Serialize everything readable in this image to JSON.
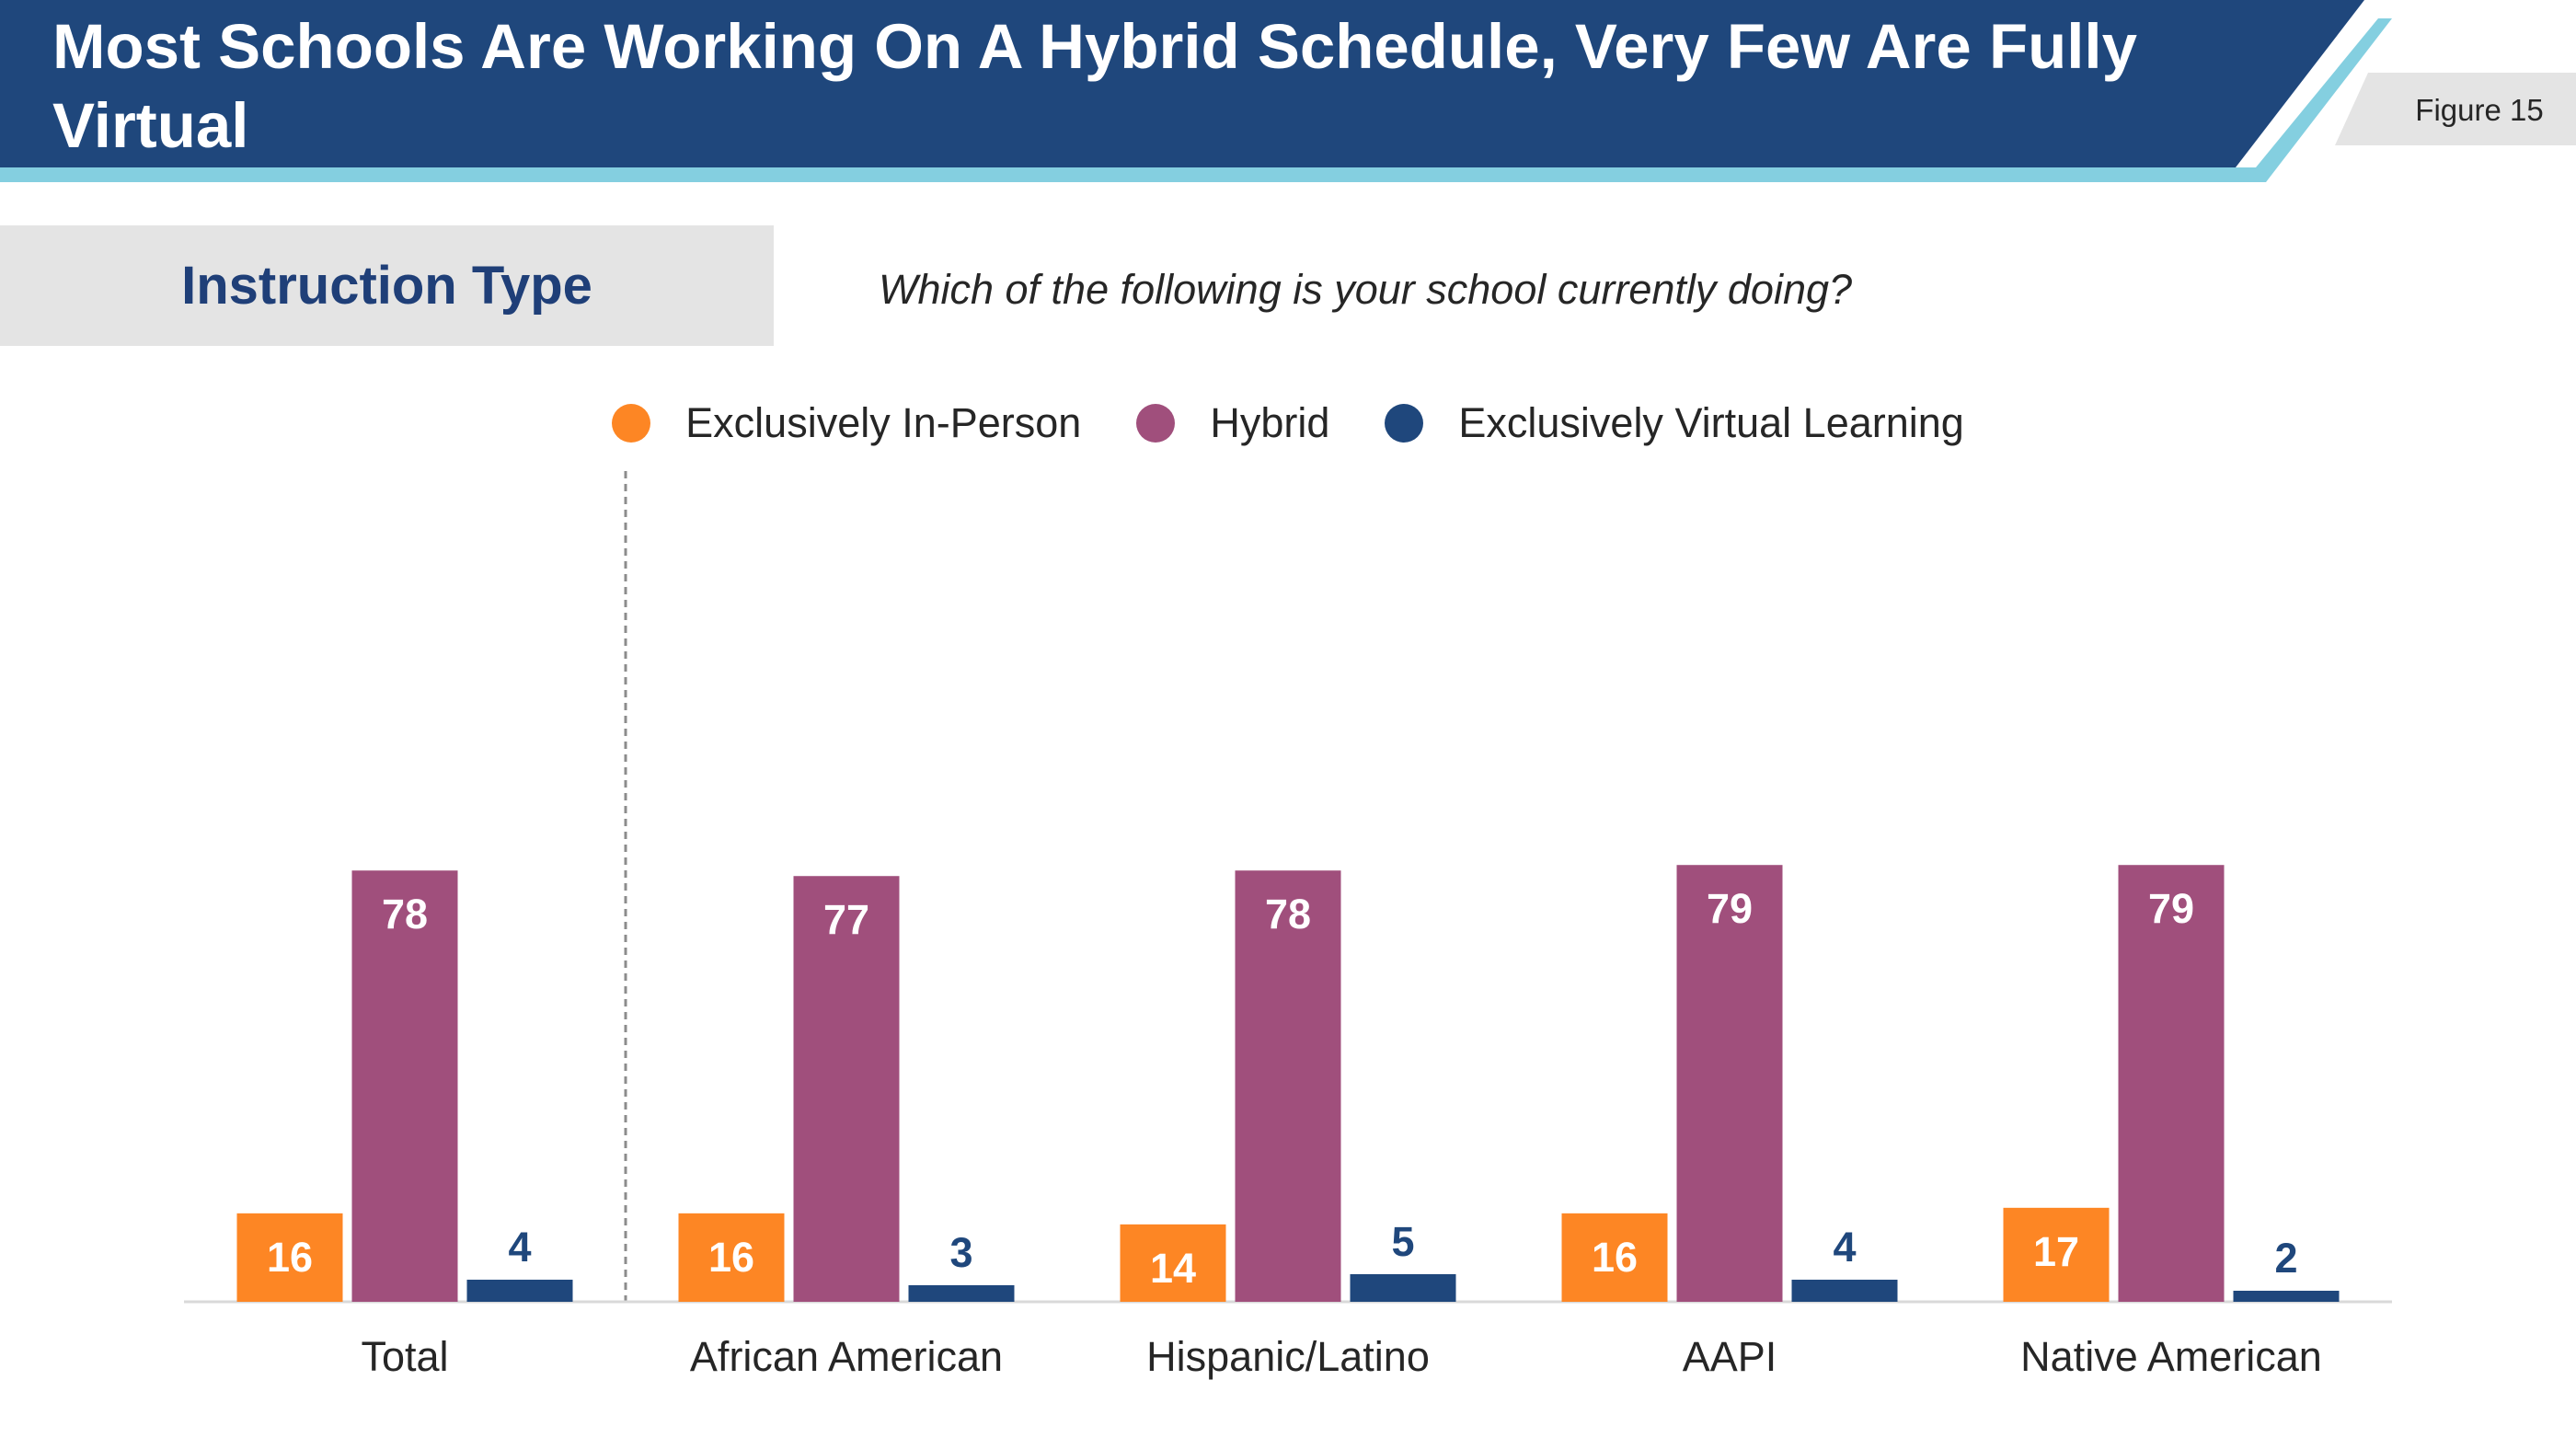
{
  "header": {
    "title": "Most Schools Are Working On A Hybrid Schedule, Very Few Are Fully Virtual",
    "figure_label": "Figure 15"
  },
  "section": {
    "label": "Instruction Type",
    "question": "Which of the following is your school currently doing?"
  },
  "colors": {
    "banner": "#1f477c",
    "banner_accent": "#84cfe0",
    "in_person": "#fd8624",
    "hybrid": "#a04f7c",
    "virtual": "#1f477c"
  },
  "chart_data": {
    "type": "bar",
    "title": "Instruction Type",
    "xlabel": "",
    "ylabel": "",
    "ylim": [
      0,
      100
    ],
    "categories": [
      "Total",
      "African American",
      "Hispanic/Latino",
      "AAPI",
      "Native American"
    ],
    "series": [
      {
        "name": "Exclusively In-Person",
        "color": "#fd8624",
        "values": [
          16,
          16,
          14,
          16,
          17
        ]
      },
      {
        "name": "Hybrid",
        "color": "#a04f7c",
        "values": [
          78,
          77,
          78,
          79,
          79
        ]
      },
      {
        "name": "Exclusively Virtual Learning",
        "color": "#1f477c",
        "values": [
          4,
          3,
          5,
          4,
          2
        ]
      }
    ],
    "legend": "top-center",
    "grid": false
  }
}
